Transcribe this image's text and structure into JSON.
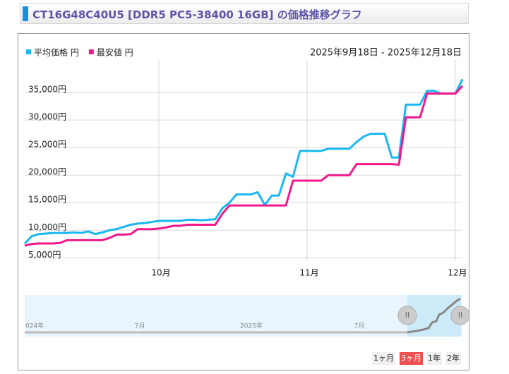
{
  "chart_data": {
    "type": "line",
    "title": "CT16G48C40U5 [DDR5 PC5-38400 16GB] の価格推移グラフ",
    "subtitle": "2025年9月18日 - 2025年12月18日",
    "categories": [
      null,
      null,
      null,
      null,
      null,
      null,
      null,
      null,
      null,
      null,
      null,
      null,
      null,
      null,
      null,
      null,
      null,
      null,
      null,
      "10月",
      null,
      null,
      null,
      null,
      null,
      null,
      null,
      null,
      null,
      null,
      null,
      null,
      null,
      null,
      null,
      null,
      null,
      null,
      null,
      null,
      "11月",
      null,
      null,
      null,
      null,
      null,
      null,
      null,
      null,
      null,
      null,
      null,
      null,
      null,
      null,
      null,
      null,
      null,
      null,
      null,
      null,
      "12月",
      null
    ],
    "series": [
      {
        "name": "平均価格 円",
        "color": "#1ab8f0",
        "values": [
          7600,
          8900,
          9300,
          9400,
          9500,
          9500,
          9500,
          9600,
          9500,
          9800,
          9300,
          9600,
          10000,
          10200,
          10600,
          11000,
          11200,
          11300,
          11500,
          11700,
          11700,
          11700,
          11700,
          11900,
          11900,
          11800,
          11900,
          12000,
          14000,
          15000,
          16500,
          16500,
          16500,
          16900,
          14600,
          16300,
          16300,
          20300,
          19700,
          24400,
          24400,
          24400,
          24400,
          24800,
          24800,
          24800,
          24800,
          26000,
          27000,
          27500,
          27500,
          27500,
          23200,
          23200,
          32800,
          32800,
          32800,
          35300,
          35300,
          34800,
          34800,
          34800,
          37400
        ]
      },
      {
        "name": "最安値 円",
        "color": "#f0188c",
        "values": [
          7200,
          7500,
          7600,
          7600,
          7600,
          7700,
          8200,
          8200,
          8200,
          8200,
          8200,
          8200,
          8600,
          9200,
          9200,
          9300,
          10200,
          10200,
          10200,
          10300,
          10500,
          10800,
          10800,
          11000,
          11000,
          11000,
          11000,
          11000,
          13000,
          14500,
          14500,
          14500,
          14500,
          14500,
          14500,
          14500,
          14500,
          14500,
          19000,
          19000,
          19000,
          19000,
          19000,
          20000,
          20000,
          20000,
          20000,
          22000,
          22000,
          22000,
          22000,
          22000,
          22000,
          21900,
          30500,
          30500,
          30500,
          34800,
          34800,
          34800,
          34800,
          34800,
          36200
        ]
      }
    ],
    "ylim": [
      4400,
      40900
    ],
    "yticks": [
      {
        "value": 5000,
        "label": "5,000円"
      },
      {
        "value": 10000,
        "label": "10,000円"
      },
      {
        "value": 15000,
        "label": "15,000円"
      },
      {
        "value": 20000,
        "label": "20,000円"
      },
      {
        "value": 25000,
        "label": "25,000円"
      },
      {
        "value": 30000,
        "label": "30,000円"
      },
      {
        "value": 35000,
        "label": "35,000円"
      }
    ],
    "grid": true,
    "legend": "top-left"
  },
  "navigator": {
    "labels": [
      "024年",
      "7月",
      "2025年",
      "7月"
    ]
  },
  "range_buttons": [
    "1ヶ月",
    "3ヶ月",
    "1年",
    "2年"
  ]
}
